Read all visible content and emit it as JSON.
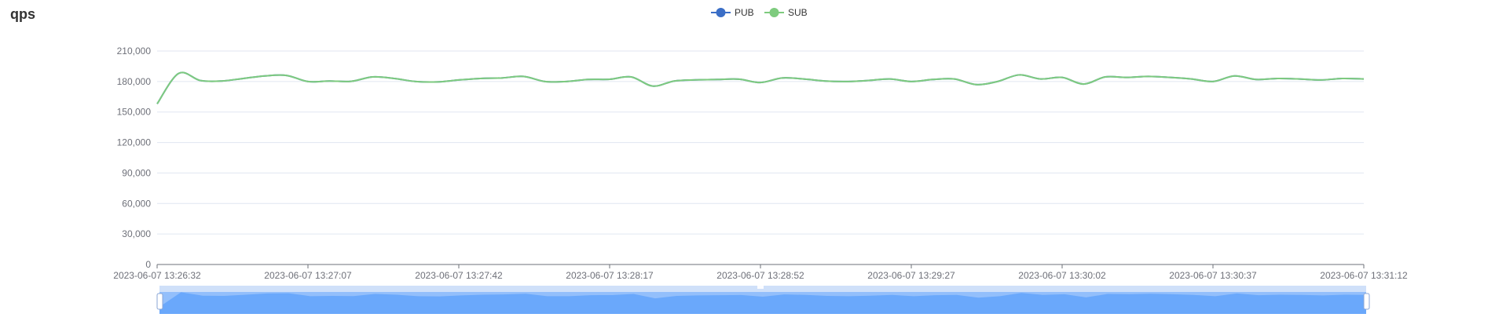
{
  "title": "qps",
  "colors": {
    "PUB": "#3b6ec6",
    "SUB": "#7ecb7e",
    "grid": "#e0e6f1",
    "axis": "#6e7079",
    "zoom_fill": "#6aa8fb",
    "zoom_bg": "#cfe0f9"
  },
  "chart_data": {
    "type": "line",
    "title": "qps",
    "xlabel": "",
    "ylabel": "",
    "ylim": [
      0,
      210000
    ],
    "yticks": [
      "0",
      "30,000",
      "60,000",
      "90,000",
      "120,000",
      "150,000",
      "180,000",
      "210,000"
    ],
    "x_range": [
      "2023-06-07 13:26:32",
      "2023-06-07 13:31:12"
    ],
    "xticks": [
      "2023-06-07 13:26:32",
      "2023-06-07 13:27:07",
      "2023-06-07 13:27:42",
      "2023-06-07 13:28:17",
      "2023-06-07 13:28:52",
      "2023-06-07 13:29:27",
      "2023-06-07 13:30:02",
      "2023-06-07 13:30:37",
      "2023-06-07 13:31:12"
    ],
    "legend_position": "top-center",
    "grid": true,
    "dataZoom": true,
    "x": [
      "2023-06-07 13:26:32",
      "2023-06-07 13:26:37",
      "2023-06-07 13:26:42",
      "2023-06-07 13:26:47",
      "2023-06-07 13:26:52",
      "2023-06-07 13:26:57",
      "2023-06-07 13:27:02",
      "2023-06-07 13:27:07",
      "2023-06-07 13:27:12",
      "2023-06-07 13:27:17",
      "2023-06-07 13:27:22",
      "2023-06-07 13:27:27",
      "2023-06-07 13:27:32",
      "2023-06-07 13:27:37",
      "2023-06-07 13:27:42",
      "2023-06-07 13:27:47",
      "2023-06-07 13:27:52",
      "2023-06-07 13:27:57",
      "2023-06-07 13:28:02",
      "2023-06-07 13:28:07",
      "2023-06-07 13:28:12",
      "2023-06-07 13:28:17",
      "2023-06-07 13:28:22",
      "2023-06-07 13:28:27",
      "2023-06-07 13:28:32",
      "2023-06-07 13:28:37",
      "2023-06-07 13:28:42",
      "2023-06-07 13:28:47",
      "2023-06-07 13:28:52",
      "2023-06-07 13:28:57",
      "2023-06-07 13:29:02",
      "2023-06-07 13:29:07",
      "2023-06-07 13:29:12",
      "2023-06-07 13:29:17",
      "2023-06-07 13:29:22",
      "2023-06-07 13:29:27",
      "2023-06-07 13:29:32",
      "2023-06-07 13:29:37",
      "2023-06-07 13:29:42",
      "2023-06-07 13:29:47",
      "2023-06-07 13:29:52",
      "2023-06-07 13:29:57",
      "2023-06-07 13:30:02",
      "2023-06-07 13:30:07",
      "2023-06-07 13:30:12",
      "2023-06-07 13:30:17",
      "2023-06-07 13:30:22",
      "2023-06-07 13:30:27",
      "2023-06-07 13:30:32",
      "2023-06-07 13:30:37",
      "2023-06-07 13:30:42",
      "2023-06-07 13:30:47",
      "2023-06-07 13:30:52",
      "2023-06-07 13:30:57",
      "2023-06-07 13:31:02",
      "2023-06-07 13:31:07",
      "2023-06-07 13:31:12"
    ],
    "series": [
      {
        "name": "PUB",
        "values": [
          158000,
          188000,
          181000,
          180500,
          183000,
          185500,
          186000,
          180000,
          180500,
          180200,
          184500,
          183000,
          180000,
          179600,
          181500,
          183000,
          183500,
          185000,
          180000,
          180000,
          182000,
          182200,
          184500,
          175500,
          180500,
          181600,
          182000,
          182300,
          179000,
          183500,
          182500,
          180500,
          180000,
          181000,
          182500,
          180000,
          182000,
          182500,
          177000,
          180000,
          186500,
          182500,
          184000,
          177500,
          184500,
          184000,
          185000,
          184000,
          182500,
          180000,
          185500,
          182000,
          183000,
          182500,
          181500,
          183000,
          182500
        ]
      },
      {
        "name": "SUB",
        "values": [
          158000,
          188000,
          181000,
          180500,
          183000,
          185500,
          186000,
          180000,
          180500,
          180200,
          184500,
          183000,
          180000,
          179600,
          181500,
          183000,
          183500,
          185000,
          180000,
          180000,
          182000,
          182200,
          184500,
          175500,
          180500,
          181600,
          182000,
          182300,
          179000,
          183500,
          182500,
          180500,
          180000,
          181000,
          182500,
          180000,
          182000,
          182500,
          177000,
          180000,
          186500,
          182500,
          184000,
          177500,
          184500,
          184000,
          185000,
          184000,
          182500,
          180000,
          185500,
          182000,
          183000,
          182500,
          181500,
          183000,
          182500
        ]
      }
    ]
  }
}
